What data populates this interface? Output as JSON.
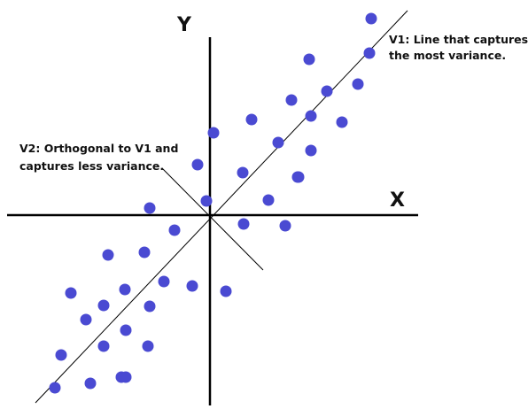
{
  "axes": {
    "x_label": "X",
    "y_label": "Y"
  },
  "annotations": {
    "v1_line1": "V1: Line that captures",
    "v1_line2": "the most variance.",
    "v2_line1": "V2: Orthogonal to V1 and",
    "v2_line2": "captures less variance."
  },
  "colors": {
    "points": "#4a4ad2",
    "axes": "#000000",
    "lines": "#000000"
  },
  "chart_data": {
    "type": "scatter",
    "x_range": [
      -175,
      225
    ],
    "y_range": [
      -210,
      235
    ],
    "points": [
      [
        -175,
        -195
      ],
      [
        -135,
        -190
      ],
      [
        -100,
        -183
      ],
      [
        -168,
        -158
      ],
      [
        -120,
        -148
      ],
      [
        -95,
        -183
      ],
      [
        -140,
        -118
      ],
      [
        -120,
        -102
      ],
      [
        -70,
        -148
      ],
      [
        -95,
        -130
      ],
      [
        -68,
        -103
      ],
      [
        -96,
        -84
      ],
      [
        -157,
        -88
      ],
      [
        -52,
        -75
      ],
      [
        -20,
        -80
      ],
      [
        18,
        -86
      ],
      [
        -115,
        -45
      ],
      [
        -74,
        -42
      ],
      [
        -40,
        -17
      ],
      [
        -68,
        8
      ],
      [
        -14,
        57
      ],
      [
        4,
        93
      ],
      [
        -4,
        16
      ],
      [
        37,
        48
      ],
      [
        47,
        108
      ],
      [
        38,
        -10
      ],
      [
        66,
        17
      ],
      [
        85,
        -12
      ],
      [
        77,
        82
      ],
      [
        99,
        43
      ],
      [
        114,
        112
      ],
      [
        114,
        73
      ],
      [
        92,
        130
      ],
      [
        132,
        140
      ],
      [
        112,
        176
      ],
      [
        149,
        105
      ],
      [
        167,
        148
      ],
      [
        180,
        183
      ],
      [
        182,
        222
      ],
      [
        100,
        43
      ]
    ]
  }
}
